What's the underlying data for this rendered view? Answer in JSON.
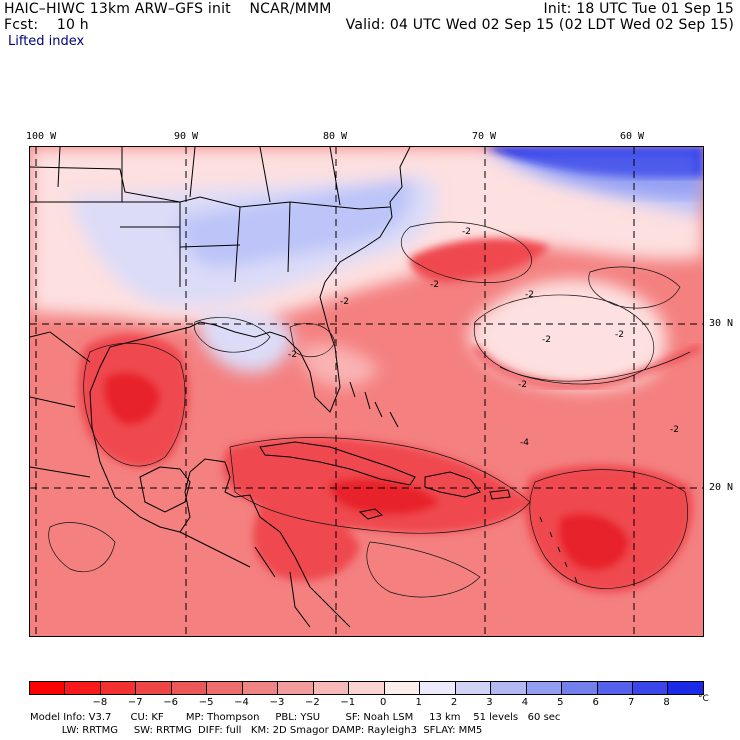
{
  "header": {
    "title": "HAIC–HIWC 13km ARW–GFS init    NCAR/MMM",
    "fcst": "Fcst:    10 h",
    "init": "Init: 18 UTC Tue 01 Sep 15",
    "valid": "Valid: 04 UTC Wed 02 Sep 15 (02 LDT Wed 02 Sep 15)",
    "field": "Lifted index"
  },
  "map": {
    "lon_labels": [
      "100 W",
      "90 W",
      "80 W",
      "70 W",
      "60 W"
    ],
    "lat_labels": [
      "30 N",
      "20 N"
    ],
    "contour_labels": [
      "-2",
      "-2",
      "-2",
      "-2",
      "-2",
      "-2",
      "-2",
      "-2",
      "-2",
      "-4"
    ],
    "colors": {
      "deep_red": "#e8202a",
      "red": "#ef4a50",
      "salmon": "#f48080",
      "light_pink": "#f9b4b4",
      "pale": "#fde0e0",
      "neutral": "#fbf5fb",
      "lavender": "#dcdcf8",
      "light_blue": "#bcc4f8",
      "blue": "#7a86f0",
      "deep_blue": "#0a1ee6"
    }
  },
  "colorbar": {
    "ticks": [
      "−8",
      "−7",
      "−6",
      "−5",
      "−4",
      "−3",
      "−2",
      "−1",
      "0",
      "1",
      "2",
      "3",
      "4",
      "5",
      "6",
      "7",
      "8"
    ],
    "unit": "°C",
    "colors": [
      "#ff0000",
      "#f81a1a",
      "#f23030",
      "#ee4545",
      "#ec5858",
      "#ee6e6e",
      "#f08484",
      "#f49c9c",
      "#f7b8b8",
      "#fbd4d4",
      "#fdeeee",
      "#eceafb",
      "#d0d2f6",
      "#b2b8f2",
      "#949ef0",
      "#747fee",
      "#5560ec",
      "#3a46ea",
      "#1a2ae6"
    ]
  },
  "footer": {
    "line1": "Model Info: V3.7      CU: KF       MP: Thompson     PBL: YSU        SF: Noah LSM     13 km    51 levels   60 sec",
    "line2": "          LW: RRTMG     SW: RRTMG  DIFF: full   KM: 2D Smagor DAMP: Rayleigh3  SFLAY: MM5"
  }
}
